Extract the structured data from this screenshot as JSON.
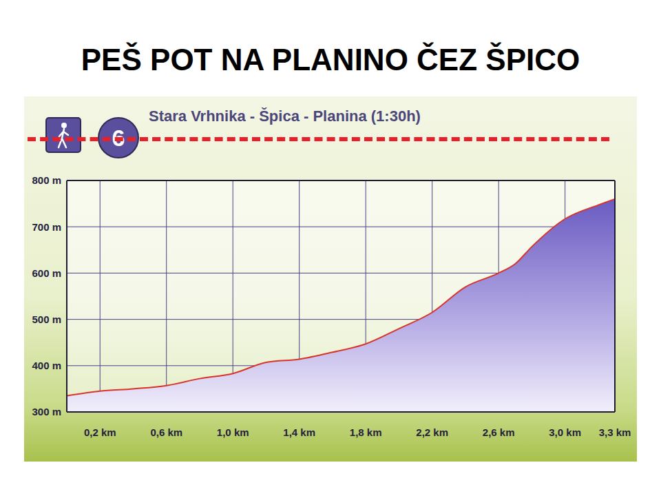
{
  "chart_data": {
    "type": "area",
    "title": "PEŠ POT NA PLANINO ČEZ ŠPICO",
    "subtitle": "Stara Vrhnika - Špica - Planina (1:30h)",
    "annotations": [
      "6"
    ],
    "x": [
      0,
      0.2,
      0.4,
      0.6,
      0.8,
      1.0,
      1.2,
      1.4,
      1.6,
      1.8,
      2.0,
      2.2,
      2.4,
      2.6,
      2.7,
      2.8,
      3.0,
      3.2,
      3.3
    ],
    "values": [
      335,
      345,
      350,
      357,
      372,
      383,
      407,
      414,
      429,
      447,
      480,
      515,
      570,
      600,
      620,
      657,
      717,
      747,
      760
    ],
    "color": "#d9342b",
    "xlim": [
      0,
      3.3
    ],
    "xticks": [
      {
        "value": 0.2,
        "label": "0,2 km"
      },
      {
        "value": 0.6,
        "label": "0,6 km"
      },
      {
        "value": 1.0,
        "label": "1,0 km"
      },
      {
        "value": 1.4,
        "label": "1,4 km"
      },
      {
        "value": 1.8,
        "label": "1,8 km"
      },
      {
        "value": 2.2,
        "label": "2,2 km"
      },
      {
        "value": 2.6,
        "label": "2,6 km"
      },
      {
        "value": 3.0,
        "label": "3,0 km"
      },
      {
        "value": 3.3,
        "label": "3,3 km"
      }
    ],
    "ylim": [
      300,
      800
    ],
    "yticks": [
      {
        "value": 300,
        "label": "300 m"
      },
      {
        "value": 400,
        "label": "400 m"
      },
      {
        "value": 500,
        "label": "500 m"
      },
      {
        "value": 600,
        "label": "600 m"
      },
      {
        "value": 700,
        "label": "700 m"
      },
      {
        "value": 800,
        "label": "800 m"
      }
    ],
    "grid": true
  }
}
